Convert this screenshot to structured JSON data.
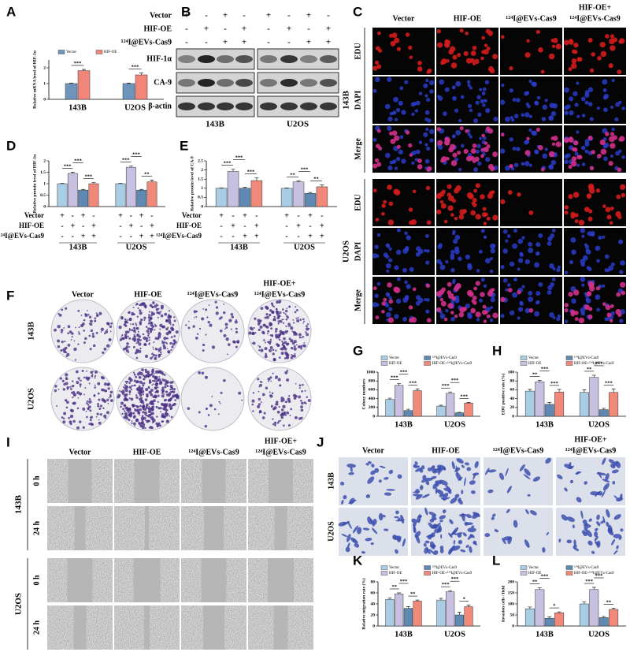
{
  "panel_letters": [
    "A",
    "B",
    "C",
    "D",
    "E",
    "F",
    "G",
    "H",
    "I",
    "J",
    "K",
    "L"
  ],
  "chart_data": [
    {
      "type": "bar",
      "ylabel": "Relative mRNA level of HIF-1α",
      "categories": [
        "143B",
        "U2OS"
      ],
      "series": [
        {
          "name": "Vector",
          "color": "#6f95bd",
          "values": [
            1.0,
            1.0
          ],
          "errors": [
            0.03,
            0.03
          ]
        },
        {
          "name": "HIF-OE",
          "color": "#f2857a",
          "values": [
            1.82,
            1.55
          ],
          "errors": [
            0.08,
            0.12
          ]
        }
      ],
      "ylim": [
        0,
        2.5
      ],
      "yticks": [
        0,
        1,
        2
      ],
      "annotations": [
        [
          "***"
        ],
        [
          "***"
        ]
      ]
    },
    {
      "type": "bar",
      "ylabel": "Relative protein level of HIF-1α",
      "categories": [
        "143B",
        "U2OS"
      ],
      "series": [
        {
          "color": "#a8cde4",
          "values": [
            1.0,
            1.0
          ],
          "errors": [
            0.02,
            0.02
          ]
        },
        {
          "color": "#c8c0e0",
          "values": [
            1.45,
            1.72
          ],
          "errors": [
            0.05,
            0.05
          ]
        },
        {
          "color": "#5f88b2",
          "values": [
            0.72,
            0.72
          ],
          "errors": [
            0.03,
            0.03
          ]
        },
        {
          "color": "#f0897a",
          "values": [
            1.0,
            1.08
          ],
          "errors": [
            0.05,
            0.08
          ]
        }
      ],
      "ylim": [
        0,
        2
      ],
      "yticks": [
        0,
        0.5,
        1,
        1.5,
        2
      ],
      "annotations": [
        [
          "***",
          "***",
          "***"
        ],
        [
          "***",
          "***",
          "**"
        ]
      ],
      "sign_rows": [
        {
          "label": "Vector",
          "signs": [
            "+",
            "-",
            "+",
            "-",
            "+",
            "-",
            "+",
            "-"
          ]
        },
        {
          "label": "HIF-OE",
          "signs": [
            "-",
            "+",
            "-",
            "+",
            "-",
            "+",
            "-",
            "+"
          ]
        },
        {
          "label": "¹²⁴I@EVs-Cas9",
          "signs": [
            "-",
            "-",
            "+",
            "+",
            "-",
            "-",
            "+",
            "+"
          ]
        }
      ]
    },
    {
      "type": "bar",
      "ylabel": "Relative protein level of CA-9",
      "categories": [
        "143B",
        "U2OS"
      ],
      "series": [
        {
          "color": "#a8cde4",
          "values": [
            1.0,
            1.0
          ],
          "errors": [
            0.02,
            0.02
          ]
        },
        {
          "color": "#c8c0e0",
          "values": [
            1.92,
            1.35
          ],
          "errors": [
            0.12,
            0.05
          ]
        },
        {
          "color": "#5f88b2",
          "values": [
            1.0,
            0.72
          ],
          "errors": [
            0.05,
            0.05
          ]
        },
        {
          "color": "#f0897a",
          "values": [
            1.42,
            1.08
          ],
          "errors": [
            0.15,
            0.1
          ]
        }
      ],
      "ylim": [
        0,
        2.5
      ],
      "yticks": [
        0,
        0.5,
        1,
        1.5,
        2,
        2.5
      ],
      "annotations": [
        [
          "***",
          "***",
          "***"
        ],
        [
          "**",
          "***",
          "**"
        ]
      ],
      "sign_rows": [
        {
          "label": "Vector",
          "signs": [
            "+",
            "-",
            "+",
            "-",
            "+",
            "-",
            "+",
            "-"
          ]
        },
        {
          "label": "HIF-OE",
          "signs": [
            "-",
            "+",
            "-",
            "+",
            "-",
            "+",
            "-",
            "+"
          ]
        },
        {
          "label": "¹²⁴I@EVs-Cas9",
          "signs": [
            "-",
            "-",
            "+",
            "+",
            "-",
            "-",
            "+",
            "+"
          ]
        }
      ]
    },
    {
      "type": "bar",
      "ylabel": "Colony numbers",
      "categories": [
        "143B",
        "U2OS"
      ],
      "series": [
        {
          "name": "Vector",
          "color": "#a8cde4",
          "values": [
            380,
            230
          ],
          "errors": [
            30,
            20
          ]
        },
        {
          "name": "HIF-OE",
          "color": "#c8c0e0",
          "values": [
            700,
            520
          ],
          "errors": [
            40,
            30
          ]
        },
        {
          "name": "¹²⁴I@EVs-Cas9",
          "color": "#5f88b2",
          "values": [
            130,
            80
          ],
          "errors": [
            30,
            10
          ]
        },
        {
          "name": "HIF-OE+¹²⁴I@EVs-Cas9",
          "color": "#f0897a",
          "values": [
            580,
            300
          ],
          "errors": [
            40,
            15
          ]
        }
      ],
      "ylim": [
        0,
        1000
      ],
      "yticks": [
        0,
        200,
        400,
        600,
        800,
        1000
      ],
      "annotations": [
        [
          "***",
          "***",
          "***"
        ],
        [
          "***",
          "***",
          "***"
        ]
      ]
    },
    {
      "type": "bar",
      "ylabel": "EDU positive rate (%)",
      "categories": [
        "143B",
        "U2OS"
      ],
      "series": [
        {
          "name": "Vector",
          "color": "#a8cde4",
          "values": [
            57,
            54
          ],
          "errors": [
            4,
            6
          ]
        },
        {
          "name": "HIF-OE",
          "color": "#c8c0e0",
          "values": [
            78,
            88
          ],
          "errors": [
            3,
            5
          ]
        },
        {
          "name": "¹²⁴I@EVs-Cas9",
          "color": "#5f88b2",
          "values": [
            27,
            15
          ],
          "errors": [
            4,
            3
          ]
        },
        {
          "name": "HIF-OE+¹²⁴I@EVs-Cas9",
          "color": "#f0897a",
          "values": [
            55,
            54
          ],
          "errors": [
            6,
            8
          ]
        }
      ],
      "ylim": [
        0,
        100
      ],
      "yticks": [
        0,
        20,
        40,
        60,
        80,
        100
      ],
      "annotations": [
        [
          "**",
          "***",
          "***"
        ],
        [
          "**",
          "***",
          "***"
        ]
      ]
    },
    {
      "type": "bar",
      "ylabel": "Relative migration rate (%)",
      "categories": [
        "143B",
        "U2OS"
      ],
      "series": [
        {
          "name": "Vector",
          "color": "#a8cde4",
          "values": [
            48,
            47
          ],
          "errors": [
            3,
            3
          ]
        },
        {
          "name": "HIF-OE",
          "color": "#c8c0e0",
          "values": [
            58,
            62
          ],
          "errors": [
            2,
            2
          ]
        },
        {
          "name": "¹²⁴I@EVs-Cas9",
          "color": "#5f88b2",
          "values": [
            32,
            20
          ],
          "errors": [
            3,
            5
          ]
        },
        {
          "name": "HIF-OE+¹²⁴I@EVs-Cas9",
          "color": "#f0897a",
          "values": [
            45,
            35
          ],
          "errors": [
            2,
            3
          ]
        }
      ],
      "ylim": [
        0,
        80
      ],
      "yticks": [
        0,
        20,
        40,
        60,
        80
      ],
      "annotations": [
        [
          "**",
          "***",
          "**"
        ],
        [
          "***",
          "***",
          "*"
        ]
      ]
    },
    {
      "type": "bar",
      "ylabel": "Invasion cells / field",
      "categories": [
        "143B",
        "U2OS"
      ],
      "series": [
        {
          "name": "Vector",
          "color": "#a8cde4",
          "values": [
            78,
            100
          ],
          "errors": [
            8,
            10
          ]
        },
        {
          "name": "HIF-OE",
          "color": "#c8c0e0",
          "values": [
            165,
            165
          ],
          "errors": [
            8,
            10
          ]
        },
        {
          "name": "¹²⁴I@EVs-Cas9",
          "color": "#5f88b2",
          "values": [
            35,
            38
          ],
          "errors": [
            6,
            5
          ]
        },
        {
          "name": "HIF-OE+¹²⁴I@EVs-Cas9",
          "color": "#f0897a",
          "values": [
            60,
            75
          ],
          "errors": [
            4,
            6
          ]
        }
      ],
      "ylim": [
        0,
        200
      ],
      "yticks": [
        0,
        50,
        100,
        150,
        200
      ],
      "annotations": [
        [
          "**",
          "***",
          "*"
        ],
        [
          "***",
          "***",
          "**"
        ]
      ]
    }
  ],
  "blot": {
    "sign_rows": [
      {
        "label": "Vector",
        "signs": [
          "+",
          "-",
          "+",
          "-",
          "+",
          "-",
          "+",
          "-"
        ]
      },
      {
        "label": "HIF-OE",
        "signs": [
          "-",
          "+",
          "-",
          "+",
          "-",
          "+",
          "-",
          "+"
        ]
      },
      {
        "label": "¹²⁴I@EVs-Cas9",
        "signs": [
          "-",
          "-",
          "+",
          "+",
          "-",
          "-",
          "+",
          "+"
        ]
      }
    ],
    "proteins": [
      "HIF-1α",
      "CA-9",
      "β-actin"
    ],
    "cell_lines": [
      "143B",
      "U2OS"
    ]
  },
  "edu": {
    "columns": [
      [
        "Vector"
      ],
      [
        "HIF-OE"
      ],
      [
        "¹²⁴I@EVs-Cas9"
      ],
      [
        "HIF-OE+",
        "¹²⁴I@EVs-Cas9"
      ]
    ],
    "cell_lines": [
      "143B",
      "U2OS"
    ],
    "channels": [
      "EDU",
      "DAPI",
      "Merge"
    ]
  },
  "colony": {
    "columns": [
      [
        "Vector"
      ],
      [
        "HIF-OE"
      ],
      [
        "¹²⁴I@EVs-Cas9"
      ],
      [
        "HIF-OE+",
        "¹²⁴I@EVs-Cas9"
      ]
    ],
    "cell_lines": [
      "143B",
      "U2OS"
    ]
  },
  "wound": {
    "columns": [
      [
        "Vector"
      ],
      [
        "HIF-OE"
      ],
      [
        "¹²⁴I@EVs-Cas9"
      ],
      [
        "HIF-OE+",
        "¹²⁴I@EVs-Cas9"
      ]
    ],
    "cell_lines": [
      "143B",
      "U2OS"
    ],
    "times": [
      "0 h",
      "24 h"
    ]
  },
  "transwell": {
    "columns": [
      [
        "Vector"
      ],
      [
        "HIF-OE"
      ],
      [
        "¹²⁴I@EVs-Cas9"
      ],
      [
        "HIF-OE+",
        "¹²⁴I@EVs-Cas9"
      ]
    ],
    "cell_lines": [
      "143B",
      "U2OS"
    ]
  }
}
